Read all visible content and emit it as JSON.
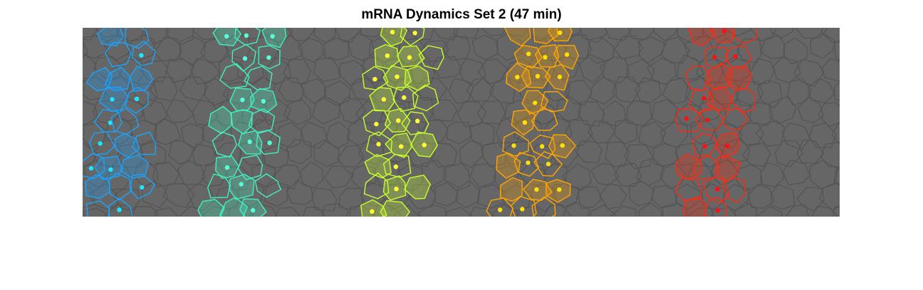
{
  "figure": {
    "title": "mRNA Dynamics Set 2 (47 min)"
  },
  "image": {
    "background_color": "#666666",
    "mesh_color": "#555555",
    "stripes": [
      {
        "name": "blue",
        "color": "#1aa3ff",
        "dot_color": "#19e6ff"
      },
      {
        "name": "teal",
        "color": "#40f0c0",
        "dot_color": "#55ffd8"
      },
      {
        "name": "yellow-green",
        "color": "#c8ff2a",
        "dot_color": "#ffff33"
      },
      {
        "name": "orange",
        "color": "#ffa500",
        "dot_color": "#ffe000"
      },
      {
        "name": "red",
        "color": "#ff2a10",
        "dot_color": "#ff1010"
      }
    ]
  }
}
